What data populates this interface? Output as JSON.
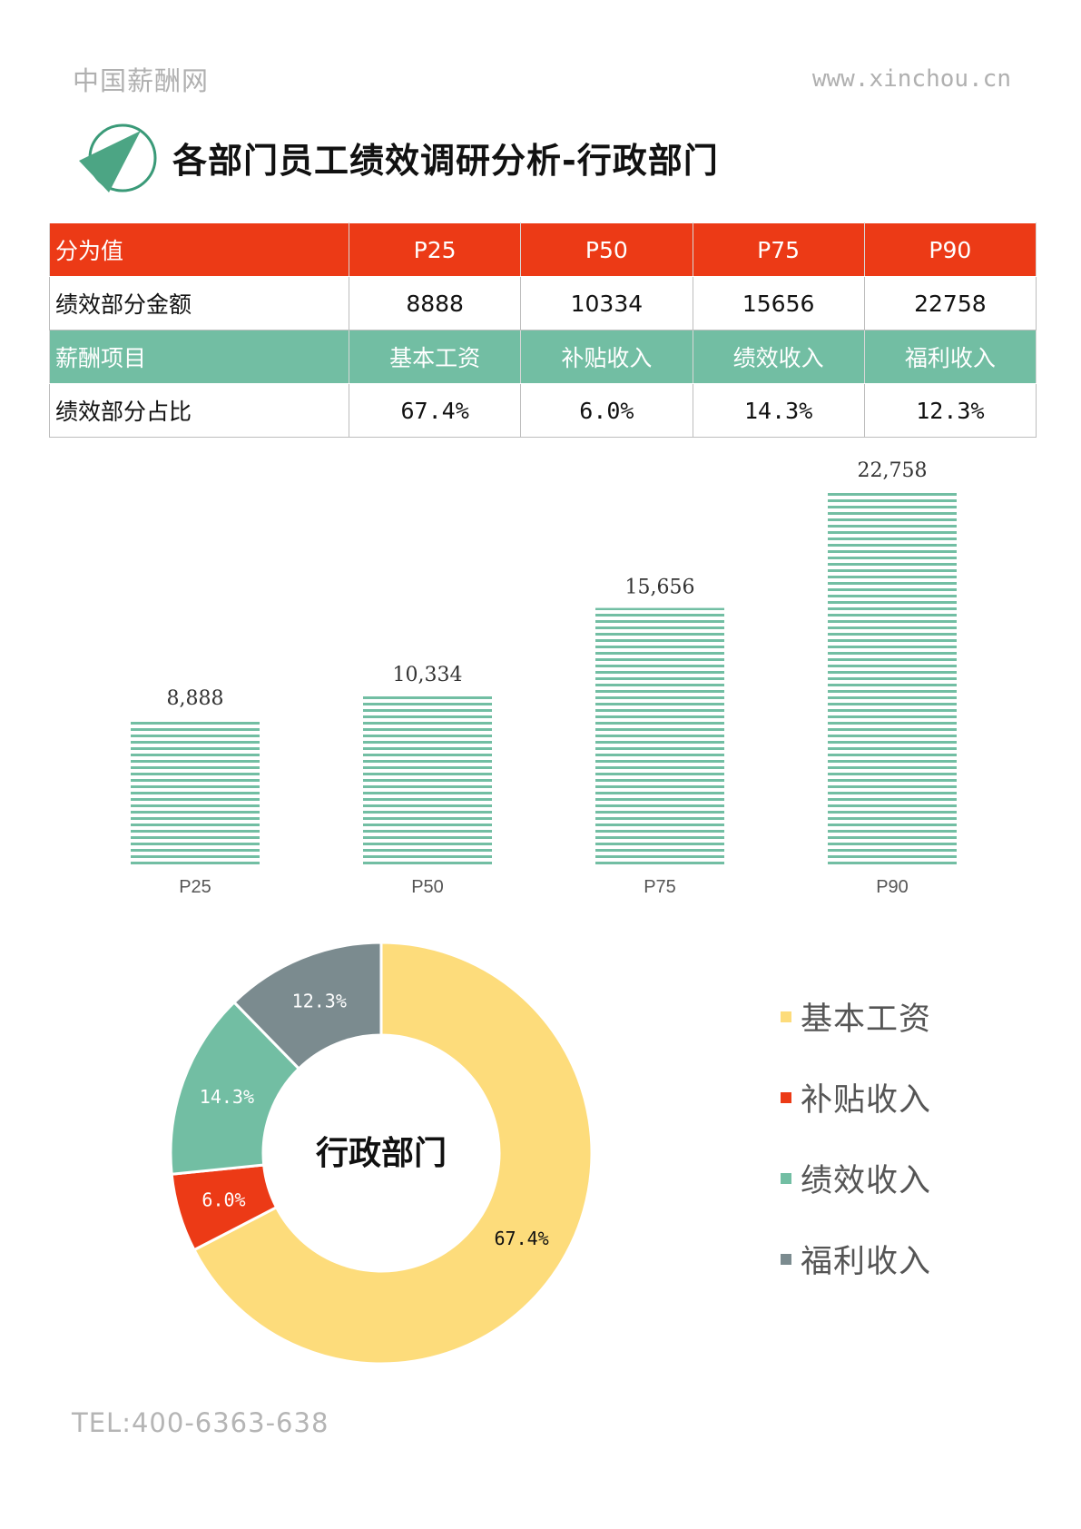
{
  "header": {
    "site_name": "中国薪酬网",
    "url": "www.xinchou.cn"
  },
  "page_title": "各部门员工绩效调研分析-行政部门",
  "table": {
    "percentile_row": {
      "label": "分为值",
      "cells": [
        "P25",
        "P50",
        "P75",
        "P90"
      ]
    },
    "amount_row": {
      "label": "绩效部分金额",
      "cells": [
        "8888",
        "10334",
        "15656",
        "22758"
      ]
    },
    "item_row": {
      "label": "薪酬项目",
      "cells": [
        "基本工资",
        "补贴收入",
        "绩效收入",
        "福利收入"
      ]
    },
    "share_row": {
      "label": "绩效部分占比",
      "cells": [
        "67.4%",
        "6.0%",
        "14.3%",
        "12.3%"
      ]
    }
  },
  "chart_data": [
    {
      "type": "bar",
      "categories": [
        "P25",
        "P50",
        "P75",
        "P90"
      ],
      "values": [
        8888,
        10334,
        15656,
        22758
      ],
      "value_labels": [
        "8,888",
        "10,334",
        "15,656",
        "22,758"
      ],
      "ylim": [
        0,
        22758
      ],
      "grid": false,
      "color": "#72bea3",
      "fill_pattern": "horizontal-stripes"
    },
    {
      "type": "pie",
      "style": "donut",
      "center_label": "行政部门",
      "categories": [
        "基本工资",
        "补贴收入",
        "绩效收入",
        "福利收入"
      ],
      "values": [
        67.4,
        6.0,
        14.3,
        12.3
      ],
      "value_labels": [
        "67.4%",
        "6.0%",
        "14.3%",
        "12.3%"
      ],
      "colors": [
        "#fddc7b",
        "#ec3a16",
        "#72bea3",
        "#7b8b8f"
      ],
      "label_colors": [
        "#111111",
        "#ffffff",
        "#ffffff",
        "#ffffff"
      ],
      "legend_position": "right"
    }
  ],
  "footer": {
    "tel": "TEL:400-6363-638"
  }
}
